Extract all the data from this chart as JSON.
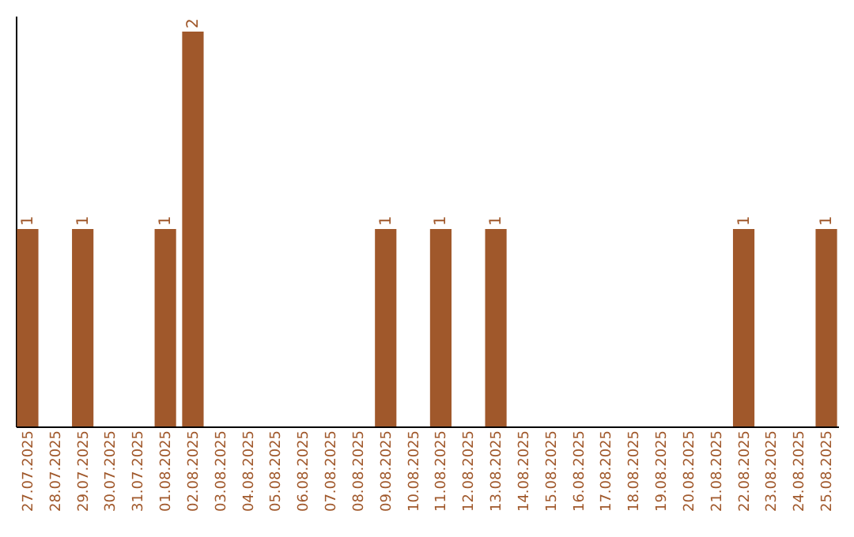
{
  "chart_data": {
    "type": "bar",
    "categories": [
      "27.07.2025",
      "28.07.2025",
      "29.07.2025",
      "30.07.2025",
      "31.07.2025",
      "01.08.2025",
      "02.08.2025",
      "03.08.2025",
      "04.08.2025",
      "05.08.2025",
      "06.08.2025",
      "07.08.2025",
      "08.08.2025",
      "09.08.2025",
      "10.08.2025",
      "11.08.2025",
      "12.08.2025",
      "13.08.2025",
      "14.08.2025",
      "15.08.2025",
      "16.08.2025",
      "17.08.2025",
      "18.08.2025",
      "19.08.2025",
      "20.08.2025",
      "21.08.2025",
      "22.08.2025",
      "23.08.2025",
      "24.08.2025",
      "25.08.2025"
    ],
    "values": [
      1,
      0,
      1,
      0,
      0,
      1,
      2,
      0,
      0,
      0,
      0,
      0,
      0,
      1,
      0,
      1,
      0,
      1,
      0,
      0,
      0,
      0,
      0,
      0,
      0,
      0,
      1,
      0,
      0,
      1
    ],
    "value_labels": [
      "1",
      null,
      "1",
      null,
      null,
      "1",
      "2",
      null,
      null,
      null,
      null,
      null,
      null,
      "1",
      null,
      "1",
      null,
      "1",
      null,
      null,
      null,
      null,
      null,
      null,
      null,
      null,
      "1",
      null,
      null,
      "1"
    ],
    "color": "#a0582b",
    "grid": false,
    "tick_labels": "x"
  }
}
